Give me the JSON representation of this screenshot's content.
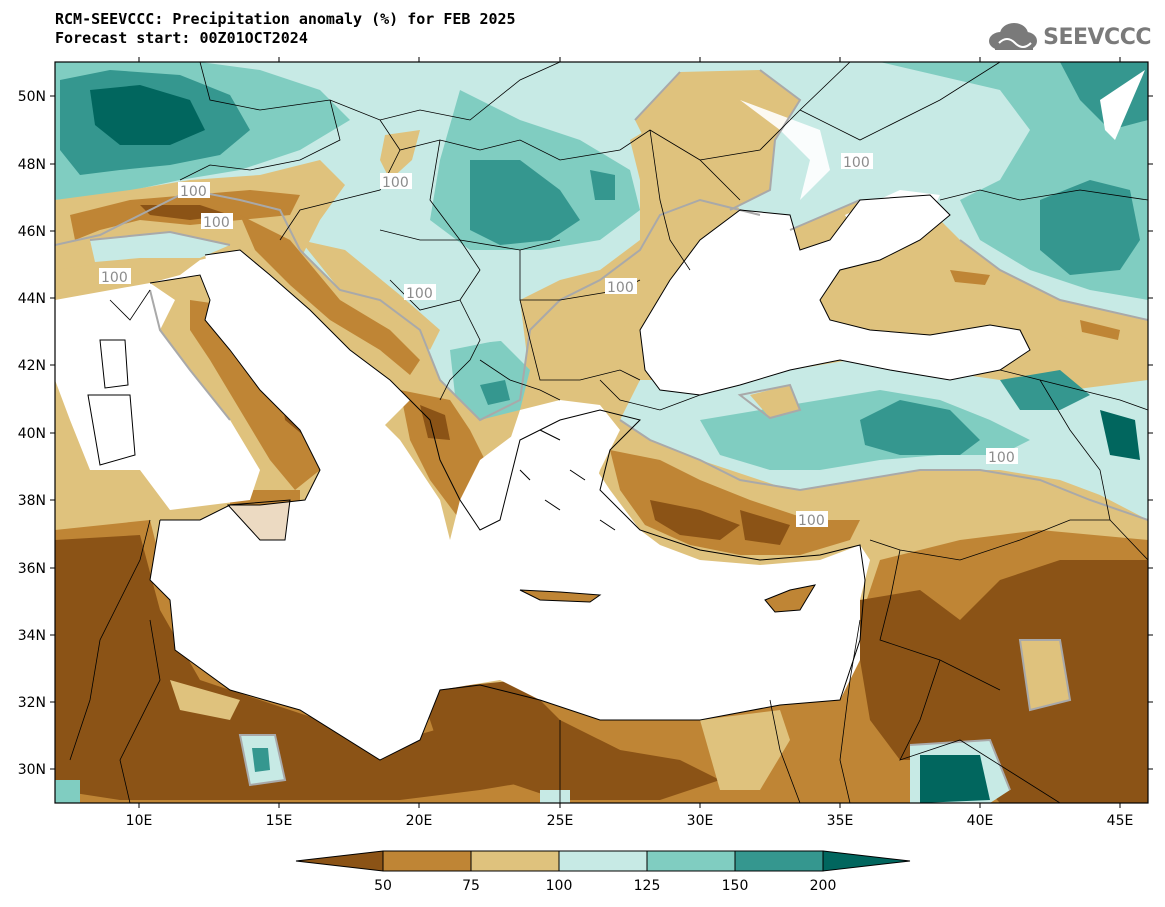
{
  "header": {
    "title_line1": "RCM-SEEVCCC: Precipitation anomaly (%) for FEB 2025",
    "title_line2": "Forecast start: 00Z01OCT2024"
  },
  "logo": {
    "text": "SEEVCCC",
    "icon": "cloud-logo-icon"
  },
  "map": {
    "lon_range": [
      7,
      46
    ],
    "lat_range": [
      29,
      51
    ],
    "lon_ticks": [
      "10E",
      "15E",
      "20E",
      "25E",
      "30E",
      "35E",
      "40E",
      "45E"
    ],
    "lat_ticks": [
      "50N",
      "48N",
      "46N",
      "44N",
      "42N",
      "40N",
      "38N",
      "36N",
      "34N",
      "32N",
      "30N"
    ],
    "contour_labels": [
      "100",
      "100",
      "100",
      "100",
      "100",
      "100",
      "100",
      "100",
      "100",
      "100"
    ]
  },
  "colors": {
    "lt50": "#8b5316",
    "50_75": "#bf8535",
    "75_100": "#dfc27d",
    "100_125": "#c7eae5",
    "125_150": "#80cdc1",
    "150_200": "#35978f",
    "gt200": "#01665e",
    "contour": "#a9a9a9",
    "sea": "#ffffff"
  },
  "colorbar": {
    "labels": [
      "50",
      "75",
      "100",
      "125",
      "150",
      "200"
    ]
  }
}
